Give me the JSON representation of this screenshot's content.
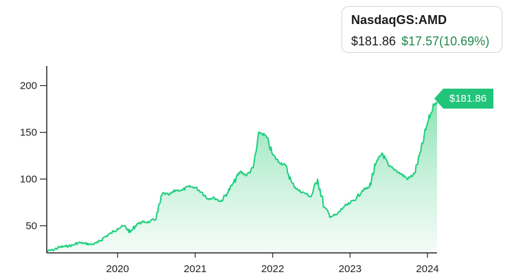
{
  "quote": {
    "ticker": "NasdaqGS:AMD",
    "price": "$181.86",
    "change": "$17.57(10.69%)"
  },
  "price_tag": {
    "label": "$181.86"
  },
  "colors": {
    "line": "#1fcf7f",
    "fill_top": "#7fe0ad",
    "fill_bottom": "#ecf9f2",
    "change": "#1f8a4c",
    "tag": "#22c47a",
    "axis": "#222222"
  },
  "chart_data": {
    "type": "area",
    "title": "",
    "xlabel": "",
    "ylabel": "",
    "ylim": [
      21,
      221
    ],
    "xlim": [
      "2019-02-01",
      "2024-02-15"
    ],
    "y_ticks": [
      "50",
      "100",
      "150",
      "200"
    ],
    "x_ticks": [
      "2020",
      "2021",
      "2022",
      "2023",
      "2024"
    ],
    "grid": false,
    "series": [
      {
        "name": "",
        "x": [
          "2019-02-01",
          "2019-03-01",
          "2019-04-01",
          "2019-05-01",
          "2019-06-01",
          "2019-07-01",
          "2019-08-01",
          "2019-09-01",
          "2019-10-01",
          "2019-11-01",
          "2019-12-01",
          "2020-01-01",
          "2020-02-01",
          "2020-03-01",
          "2020-04-01",
          "2020-05-01",
          "2020-06-01",
          "2020-07-01",
          "2020-08-01",
          "2020-09-01",
          "2020-10-01",
          "2020-11-01",
          "2020-12-01",
          "2021-01-01",
          "2021-02-01",
          "2021-03-01",
          "2021-04-01",
          "2021-05-01",
          "2021-06-01",
          "2021-07-01",
          "2021-08-01",
          "2021-09-01",
          "2021-10-01",
          "2021-11-01",
          "2021-12-01",
          "2022-01-01",
          "2022-02-01",
          "2022-03-01",
          "2022-04-01",
          "2022-05-01",
          "2022-06-01",
          "2022-07-01",
          "2022-08-01",
          "2022-09-01",
          "2022-10-01",
          "2022-11-01",
          "2022-12-01",
          "2023-01-01",
          "2023-02-01",
          "2023-03-01",
          "2023-04-01",
          "2023-05-01",
          "2023-06-01",
          "2023-07-01",
          "2023-08-01",
          "2023-09-01",
          "2023-10-01",
          "2023-11-01",
          "2023-12-01",
          "2024-01-01",
          "2024-02-01",
          "2024-02-15"
        ],
        "values": [
          23,
          24,
          27,
          28,
          29,
          32,
          31,
          30,
          32,
          38,
          42,
          47,
          50,
          43,
          52,
          54,
          54,
          58,
          85,
          83,
          88,
          88,
          92,
          91,
          86,
          79,
          80,
          76,
          85,
          96,
          108,
          104,
          112,
          150,
          146,
          126,
          118,
          115,
          96,
          88,
          85,
          81,
          100,
          70,
          60,
          62,
          70,
          74,
          80,
          88,
          91,
          115,
          128,
          114,
          110,
          105,
          100,
          106,
          130,
          160,
          180,
          181.86
        ]
      }
    ]
  }
}
